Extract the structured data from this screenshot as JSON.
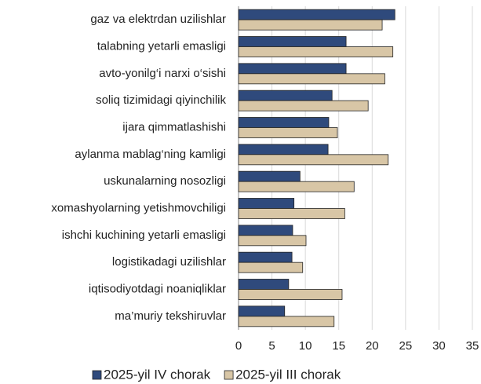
{
  "chart_data": {
    "type": "hbar",
    "categories": [
      "gaz va elektrdan uzilishlar",
      "talabning yetarli emasligi",
      "avto-yonilg‘i narxi o‘sishi",
      "soliq tizimidagi qiyinchilik",
      "ijara qimmatlashishi",
      "aylanma mablag‘ning kamligi",
      "uskunalarning nosozligi",
      "xomashyolarning yetishmovchiligi",
      "ishchi kuchining yetarli emasligi",
      "logistikadagi uzilishlar",
      "iqtisodiyotdagi noaniqliklar",
      "ma’muriy tekshiruvlar"
    ],
    "series": [
      {
        "name": "2025-yil IV chorak",
        "color": "#2f4a7c",
        "values": [
          23.4,
          16.1,
          16.1,
          14.0,
          13.5,
          13.4,
          9.2,
          8.3,
          8.1,
          8.0,
          7.5,
          6.9
        ]
      },
      {
        "name": "2025-yil III chorak",
        "color": "#d8c6a6",
        "values": [
          21.5,
          23.1,
          21.9,
          19.4,
          14.8,
          22.4,
          17.3,
          15.9,
          10.1,
          9.6,
          15.5,
          14.3
        ]
      }
    ],
    "xlim": [
      0,
      35
    ],
    "xticks": [
      0,
      5,
      10,
      15,
      20,
      25,
      30,
      35
    ],
    "grid": true,
    "legend": "bottom"
  }
}
